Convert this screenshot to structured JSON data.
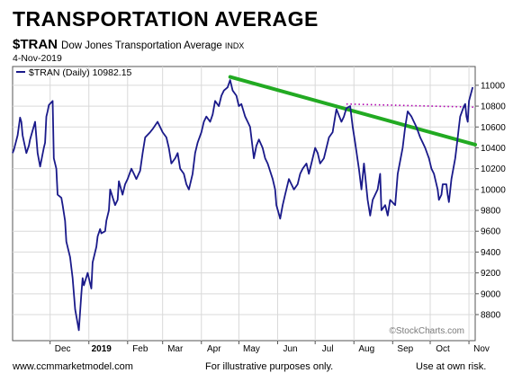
{
  "header": {
    "title": "TRANSPORTATION AVERAGE",
    "ticker": "$TRAN",
    "description": "Dow Jones Transportation Average",
    "source": "INDX",
    "date": "4-Nov-2019"
  },
  "footer": {
    "website": "www.ccmmarketmodel.com",
    "disclaimer": "For illustrative purposes only.",
    "risk": "Use at own risk."
  },
  "watermark": "©StockCharts.com",
  "colors": {
    "price": "#1a1a8a",
    "trendline": "#22aa22",
    "resistance": "#b000b0",
    "grid": "#d9d9d9"
  },
  "chart_data": {
    "type": "line",
    "legend": "$TRAN (Daily) 10982.15",
    "legend_position": "top-left",
    "grid": true,
    "x_range": [
      "2018-11-01",
      "2019-11-06"
    ],
    "ylim": [
      8550,
      11180
    ],
    "x_tick_labels": [
      {
        "label": "Dec",
        "date": "2018-12-01",
        "bold": false
      },
      {
        "label": "2019",
        "date": "2019-01-01",
        "bold": true
      },
      {
        "label": "Feb",
        "date": "2019-02-01",
        "bold": false
      },
      {
        "label": "Mar",
        "date": "2019-03-01",
        "bold": false
      },
      {
        "label": "Apr",
        "date": "2019-04-01",
        "bold": false
      },
      {
        "label": "May",
        "date": "2019-05-01",
        "bold": false
      },
      {
        "label": "Jun",
        "date": "2019-06-01",
        "bold": false
      },
      {
        "label": "Jul",
        "date": "2019-07-01",
        "bold": false
      },
      {
        "label": "Aug",
        "date": "2019-08-01",
        "bold": false
      },
      {
        "label": "Sep",
        "date": "2019-09-01",
        "bold": false
      },
      {
        "label": "Oct",
        "date": "2019-10-01",
        "bold": false
      },
      {
        "label": "Nov",
        "date": "2019-11-01",
        "bold": false
      }
    ],
    "y_ticks": [
      8800,
      9000,
      9200,
      9400,
      9600,
      9800,
      10000,
      10200,
      10400,
      10600,
      10800,
      11000
    ],
    "series": [
      {
        "values": [
          [
            "2018-11-01",
            10350
          ],
          [
            "2018-11-02",
            10380
          ],
          [
            "2018-11-05",
            10520
          ],
          [
            "2018-11-07",
            10690
          ],
          [
            "2018-11-08",
            10650
          ],
          [
            "2018-11-09",
            10520
          ],
          [
            "2018-11-12",
            10350
          ],
          [
            "2018-11-14",
            10420
          ],
          [
            "2018-11-15",
            10480
          ],
          [
            "2018-11-19",
            10650
          ],
          [
            "2018-11-20",
            10500
          ],
          [
            "2018-11-21",
            10350
          ],
          [
            "2018-11-23",
            10220
          ],
          [
            "2018-11-26",
            10400
          ],
          [
            "2018-11-27",
            10450
          ],
          [
            "2018-11-28",
            10700
          ],
          [
            "2018-11-29",
            10750
          ],
          [
            "2018-11-30",
            10810
          ],
          [
            "2018-12-03",
            10850
          ],
          [
            "2018-12-04",
            10300
          ],
          [
            "2018-12-06",
            10200
          ],
          [
            "2018-12-07",
            9950
          ],
          [
            "2018-12-10",
            9920
          ],
          [
            "2018-12-11",
            9850
          ],
          [
            "2018-12-13",
            9700
          ],
          [
            "2018-12-14",
            9500
          ],
          [
            "2018-12-17",
            9350
          ],
          [
            "2018-12-18",
            9250
          ],
          [
            "2018-12-19",
            9150
          ],
          [
            "2018-12-20",
            9000
          ],
          [
            "2018-12-21",
            8850
          ],
          [
            "2018-12-24",
            8650
          ],
          [
            "2018-12-26",
            9000
          ],
          [
            "2018-12-27",
            9150
          ],
          [
            "2018-12-28",
            9080
          ],
          [
            "2018-12-31",
            9200
          ],
          [
            "2019-01-02",
            9100
          ],
          [
            "2019-01-03",
            9050
          ],
          [
            "2019-01-04",
            9300
          ],
          [
            "2019-01-07",
            9450
          ],
          [
            "2019-01-08",
            9550
          ],
          [
            "2019-01-10",
            9620
          ],
          [
            "2019-01-11",
            9580
          ],
          [
            "2019-01-14",
            9600
          ],
          [
            "2019-01-15",
            9700
          ],
          [
            "2019-01-17",
            9800
          ],
          [
            "2019-01-18",
            10000
          ],
          [
            "2019-01-22",
            9850
          ],
          [
            "2019-01-24",
            9900
          ],
          [
            "2019-01-25",
            10080
          ],
          [
            "2019-01-28",
            9950
          ],
          [
            "2019-01-30",
            10050
          ],
          [
            "2019-02-01",
            10100
          ],
          [
            "2019-02-04",
            10200
          ],
          [
            "2019-02-06",
            10150
          ],
          [
            "2019-02-08",
            10100
          ],
          [
            "2019-02-11",
            10180
          ],
          [
            "2019-02-13",
            10350
          ],
          [
            "2019-02-15",
            10500
          ],
          [
            "2019-02-19",
            10550
          ],
          [
            "2019-02-21",
            10580
          ],
          [
            "2019-02-25",
            10650
          ],
          [
            "2019-02-27",
            10600
          ],
          [
            "2019-03-01",
            10550
          ],
          [
            "2019-03-04",
            10500
          ],
          [
            "2019-03-06",
            10400
          ],
          [
            "2019-03-08",
            10250
          ],
          [
            "2019-03-11",
            10300
          ],
          [
            "2019-03-13",
            10350
          ],
          [
            "2019-03-15",
            10200
          ],
          [
            "2019-03-18",
            10150
          ],
          [
            "2019-03-20",
            10050
          ],
          [
            "2019-03-22",
            10000
          ],
          [
            "2019-03-25",
            10150
          ],
          [
            "2019-03-27",
            10350
          ],
          [
            "2019-03-29",
            10450
          ],
          [
            "2019-04-01",
            10550
          ],
          [
            "2019-04-03",
            10650
          ],
          [
            "2019-04-05",
            10700
          ],
          [
            "2019-04-08",
            10650
          ],
          [
            "2019-04-10",
            10720
          ],
          [
            "2019-04-12",
            10850
          ],
          [
            "2019-04-15",
            10800
          ],
          [
            "2019-04-17",
            10900
          ],
          [
            "2019-04-19",
            10950
          ],
          [
            "2019-04-22",
            10980
          ],
          [
            "2019-04-24",
            11050
          ],
          [
            "2019-04-26",
            10950
          ],
          [
            "2019-04-29",
            10900
          ],
          [
            "2019-05-01",
            10800
          ],
          [
            "2019-05-03",
            10820
          ],
          [
            "2019-05-06",
            10700
          ],
          [
            "2019-05-08",
            10650
          ],
          [
            "2019-05-10",
            10600
          ],
          [
            "2019-05-13",
            10300
          ],
          [
            "2019-05-15",
            10420
          ],
          [
            "2019-05-17",
            10480
          ],
          [
            "2019-05-20",
            10400
          ],
          [
            "2019-05-22",
            10300
          ],
          [
            "2019-05-24",
            10250
          ],
          [
            "2019-05-28",
            10100
          ],
          [
            "2019-05-30",
            10000
          ],
          [
            "2019-05-31",
            9850
          ],
          [
            "2019-06-03",
            9720
          ],
          [
            "2019-06-05",
            9850
          ],
          [
            "2019-06-07",
            9950
          ],
          [
            "2019-06-10",
            10100
          ],
          [
            "2019-06-12",
            10050
          ],
          [
            "2019-06-14",
            10000
          ],
          [
            "2019-06-17",
            10050
          ],
          [
            "2019-06-19",
            10150
          ],
          [
            "2019-06-21",
            10200
          ],
          [
            "2019-06-24",
            10250
          ],
          [
            "2019-06-26",
            10150
          ],
          [
            "2019-06-28",
            10250
          ],
          [
            "2019-07-01",
            10400
          ],
          [
            "2019-07-03",
            10350
          ],
          [
            "2019-07-05",
            10250
          ],
          [
            "2019-07-08",
            10300
          ],
          [
            "2019-07-10",
            10400
          ],
          [
            "2019-07-12",
            10500
          ],
          [
            "2019-07-15",
            10550
          ],
          [
            "2019-07-17",
            10700
          ],
          [
            "2019-07-18",
            10770
          ],
          [
            "2019-07-22",
            10650
          ],
          [
            "2019-07-24",
            10700
          ],
          [
            "2019-07-26",
            10780
          ],
          [
            "2019-07-29",
            10800
          ],
          [
            "2019-07-31",
            10600
          ],
          [
            "2019-08-02",
            10450
          ],
          [
            "2019-08-05",
            10200
          ],
          [
            "2019-08-07",
            10000
          ],
          [
            "2019-08-09",
            10250
          ],
          [
            "2019-08-12",
            9900
          ],
          [
            "2019-08-14",
            9750
          ],
          [
            "2019-08-16",
            9900
          ],
          [
            "2019-08-20",
            10000
          ],
          [
            "2019-08-22",
            10150
          ],
          [
            "2019-08-23",
            9800
          ],
          [
            "2019-08-26",
            9850
          ],
          [
            "2019-08-28",
            9750
          ],
          [
            "2019-08-30",
            9900
          ],
          [
            "2019-09-03",
            9850
          ],
          [
            "2019-09-05",
            10150
          ],
          [
            "2019-09-09",
            10400
          ],
          [
            "2019-09-11",
            10600
          ],
          [
            "2019-09-13",
            10750
          ],
          [
            "2019-09-16",
            10700
          ],
          [
            "2019-09-18",
            10650
          ],
          [
            "2019-09-20",
            10600
          ],
          [
            "2019-09-23",
            10500
          ],
          [
            "2019-09-25",
            10450
          ],
          [
            "2019-09-27",
            10400
          ],
          [
            "2019-09-30",
            10300
          ],
          [
            "2019-10-02",
            10200
          ],
          [
            "2019-10-04",
            10150
          ],
          [
            "2019-10-07",
            10000
          ],
          [
            "2019-10-08",
            9900
          ],
          [
            "2019-10-10",
            9950
          ],
          [
            "2019-10-11",
            10050
          ],
          [
            "2019-10-14",
            10050
          ],
          [
            "2019-10-15",
            9950
          ],
          [
            "2019-10-16",
            9880
          ],
          [
            "2019-10-18",
            10100
          ],
          [
            "2019-10-21",
            10300
          ],
          [
            "2019-10-22",
            10400
          ],
          [
            "2019-10-23",
            10500
          ],
          [
            "2019-10-24",
            10600
          ],
          [
            "2019-10-25",
            10700
          ],
          [
            "2019-10-28",
            10800
          ],
          [
            "2019-10-29",
            10820
          ],
          [
            "2019-10-30",
            10700
          ],
          [
            "2019-10-31",
            10650
          ],
          [
            "2019-11-01",
            10850
          ],
          [
            "2019-11-04",
            10982
          ]
        ]
      }
    ],
    "annotations": [
      {
        "kind": "trendline",
        "from": [
          "2019-04-24",
          11080
        ],
        "to": [
          "2019-11-06",
          10430
        ]
      },
      {
        "kind": "dotted_horizontal",
        "from": [
          "2019-07-26",
          10820
        ],
        "to": [
          "2019-11-06",
          10790
        ]
      }
    ]
  }
}
